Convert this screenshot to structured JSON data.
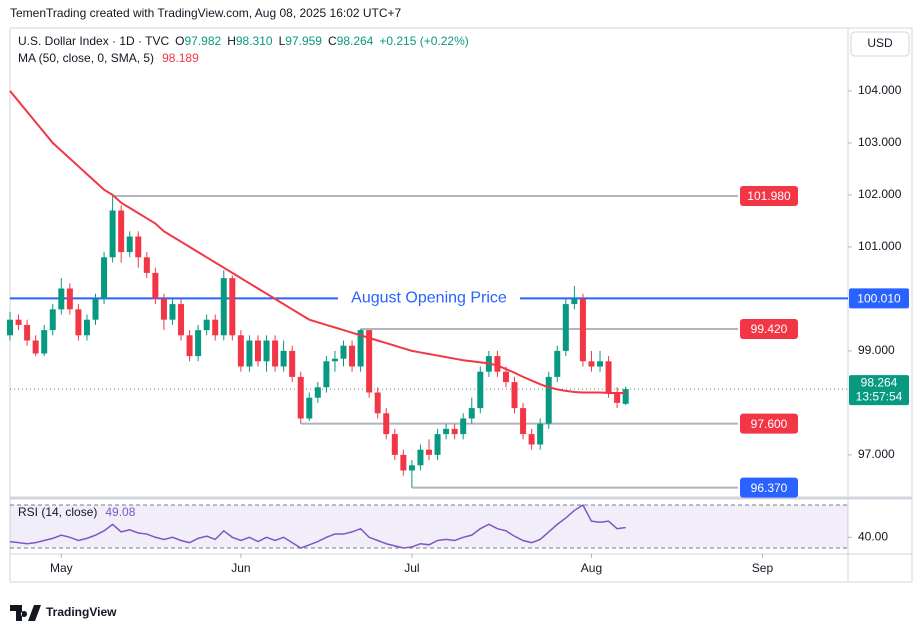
{
  "header": "TemenTrading created with TradingView.com, Aug 08, 2025 16:02 UTC+7",
  "brand": "TradingView",
  "currency": "USD",
  "chart_data": [
    {
      "type": "candlestick",
      "legend": {
        "symbol": "U.S. Dollar Index · 1D · TVC",
        "fields": [
          {
            "key": "O",
            "value": "97.982"
          },
          {
            "key": "H",
            "value": "98.310"
          },
          {
            "key": "L",
            "value": "97.959"
          },
          {
            "key": "C",
            "value": "98.264"
          }
        ],
        "change": "+0.215 (+0.22%)"
      },
      "x": [
        0,
        1,
        2,
        3,
        4,
        5,
        6,
        7,
        8,
        9,
        10,
        11,
        12,
        13,
        14,
        15,
        16,
        17,
        18,
        19,
        20,
        21,
        22,
        23,
        24,
        25,
        26,
        27,
        28,
        29,
        30,
        31,
        32,
        33,
        34,
        35,
        36,
        37,
        38,
        39,
        40,
        41,
        42,
        43,
        44,
        45,
        46,
        47,
        48,
        49,
        50,
        51,
        52,
        53,
        54,
        55,
        56,
        57,
        58,
        59,
        60,
        61,
        62,
        63,
        64,
        65,
        66,
        67,
        68,
        69,
        70,
        71,
        72
      ],
      "open": [
        99.3,
        99.6,
        99.5,
        99.2,
        98.95,
        99.4,
        99.8,
        100.2,
        99.8,
        99.3,
        99.6,
        100.0,
        100.8,
        101.7,
        100.9,
        101.2,
        100.8,
        100.5,
        100.0,
        99.6,
        99.9,
        99.3,
        98.9,
        99.4,
        99.6,
        99.3,
        100.4,
        99.3,
        98.7,
        99.2,
        98.8,
        99.2,
        98.7,
        99.0,
        98.5,
        97.7,
        98.1,
        98.3,
        98.8,
        98.85,
        99.1,
        98.7,
        99.4,
        98.2,
        97.8,
        97.4,
        97.0,
        96.7,
        96.8,
        97.1,
        97.0,
        97.4,
        97.5,
        97.4,
        97.7,
        97.9,
        98.6,
        98.9,
        98.6,
        98.4,
        97.9,
        97.4,
        97.2,
        97.6,
        98.5,
        99.0,
        99.9,
        100.0,
        98.8,
        98.7,
        98.8,
        98.2,
        97.982
      ],
      "high": [
        99.75,
        99.7,
        99.6,
        99.3,
        99.5,
        99.9,
        100.4,
        100.3,
        99.9,
        99.7,
        100.1,
        100.9,
        101.98,
        101.8,
        101.3,
        101.3,
        100.9,
        100.6,
        100.1,
        100.0,
        100.0,
        99.4,
        99.5,
        99.7,
        99.7,
        100.55,
        100.45,
        99.4,
        99.3,
        99.3,
        99.3,
        99.3,
        99.2,
        99.1,
        98.6,
        98.2,
        98.4,
        98.9,
        99.0,
        99.2,
        99.2,
        99.42,
        99.4,
        98.3,
        97.9,
        97.5,
        97.1,
        96.9,
        97.2,
        97.3,
        97.5,
        97.6,
        97.6,
        97.8,
        98.1,
        98.7,
        99.0,
        99.0,
        98.7,
        98.5,
        98.0,
        97.5,
        97.7,
        98.6,
        99.1,
        100.0,
        100.25,
        100.1,
        99.0,
        99.0,
        98.9,
        98.3,
        98.31
      ],
      "low": [
        99.2,
        99.4,
        99.1,
        98.9,
        98.9,
        99.3,
        99.7,
        99.7,
        99.2,
        99.2,
        99.5,
        99.9,
        100.7,
        100.7,
        100.8,
        100.6,
        100.4,
        99.9,
        99.4,
        99.5,
        99.2,
        98.8,
        98.8,
        99.3,
        99.2,
        99.2,
        99.2,
        98.6,
        98.6,
        98.7,
        98.6,
        98.6,
        98.6,
        98.4,
        97.6,
        97.65,
        98.0,
        98.2,
        98.6,
        98.7,
        98.6,
        98.6,
        98.1,
        97.7,
        97.3,
        96.9,
        96.6,
        96.37,
        96.7,
        96.9,
        96.9,
        97.3,
        97.3,
        97.3,
        97.6,
        97.8,
        98.5,
        98.5,
        98.3,
        97.8,
        97.3,
        97.1,
        97.1,
        97.5,
        98.4,
        98.9,
        99.8,
        98.7,
        98.6,
        98.6,
        98.1,
        97.9,
        97.959
      ],
      "close": [
        99.6,
        99.5,
        99.2,
        98.95,
        99.4,
        99.8,
        100.2,
        99.8,
        99.3,
        99.6,
        100.0,
        100.8,
        101.7,
        100.9,
        101.2,
        100.8,
        100.5,
        100.0,
        99.6,
        99.9,
        99.3,
        98.9,
        99.4,
        99.6,
        99.3,
        100.4,
        99.3,
        98.7,
        99.2,
        98.8,
        99.2,
        98.7,
        99.0,
        98.5,
        97.7,
        98.1,
        98.3,
        98.8,
        98.85,
        99.1,
        98.7,
        99.4,
        98.2,
        97.8,
        97.4,
        97.0,
        96.7,
        96.8,
        97.1,
        97.0,
        97.4,
        97.5,
        97.4,
        97.7,
        97.9,
        98.6,
        98.9,
        98.6,
        98.4,
        97.9,
        97.4,
        97.2,
        97.6,
        98.5,
        99.0,
        99.9,
        100.0,
        98.8,
        98.7,
        98.8,
        98.2,
        98.0,
        98.264
      ],
      "up_color": "#089981",
      "down_color": "#f23645",
      "ma": {
        "name": "MA (50, close, 0, SMA, 5)",
        "color": "#f23645",
        "values": [
          104.0,
          103.8,
          103.6,
          103.4,
          103.2,
          103.0,
          102.85,
          102.7,
          102.55,
          102.4,
          102.25,
          102.1,
          102.0,
          101.85,
          101.75,
          101.65,
          101.55,
          101.45,
          101.3,
          101.2,
          101.1,
          101.0,
          100.9,
          100.8,
          100.7,
          100.6,
          100.5,
          100.4,
          100.3,
          100.2,
          100.1,
          100.0,
          99.9,
          99.8,
          99.7,
          99.6,
          99.55,
          99.5,
          99.45,
          99.4,
          99.35,
          99.3,
          99.25,
          99.2,
          99.15,
          99.1,
          99.05,
          99.0,
          98.97,
          98.94,
          98.91,
          98.88,
          98.85,
          98.82,
          98.8,
          98.78,
          98.76,
          98.72,
          98.65,
          98.58,
          98.5,
          98.43,
          98.36,
          98.3,
          98.26,
          98.23,
          98.21,
          98.2,
          98.2,
          98.2,
          98.19,
          98.19,
          98.189
        ]
      },
      "levels": [
        {
          "value": 101.98,
          "label": "101.980",
          "color": "#f23645"
        },
        {
          "value": 99.42,
          "label": "99.420",
          "color": "#f23645"
        },
        {
          "value": 97.6,
          "label": "97.600",
          "color": "#f23645"
        },
        {
          "value": 96.37,
          "label": "96.370",
          "color": "#2962ff"
        }
      ],
      "opening_line": {
        "value": 100.01,
        "label": "100.010",
        "text": "August Opening Price",
        "color": "#2962ff"
      },
      "current_price": {
        "value": 98.264,
        "countdown": "13:57:54",
        "color": "#089981"
      },
      "xlim": [
        0,
        98
      ],
      "xticks": [
        {
          "value": 6,
          "label": "May"
        },
        {
          "value": 27,
          "label": "Jun"
        },
        {
          "value": 47,
          "label": "Jul"
        },
        {
          "value": 68,
          "label": "Aug"
        },
        {
          "value": 88,
          "label": "Sep"
        }
      ],
      "ylim": [
        96.19,
        105.21
      ],
      "yticks": [
        {
          "value": 97,
          "label": "97.000"
        },
        {
          "value": 99,
          "label": "99.000"
        },
        {
          "value": 101,
          "label": "101.000"
        },
        {
          "value": 102,
          "label": "102.000"
        },
        {
          "value": 103,
          "label": "103.000"
        },
        {
          "value": 104,
          "label": "104.000"
        }
      ],
      "grid": false
    },
    {
      "type": "line",
      "title": "RSI (14, close)",
      "color": "#7e57c2",
      "values": [
        36,
        35,
        34,
        35,
        37,
        39,
        42,
        40,
        37,
        39,
        42,
        46,
        52,
        45,
        47,
        44,
        43,
        40,
        38,
        40,
        37,
        35,
        39,
        41,
        38,
        46,
        40,
        37,
        40,
        36,
        40,
        37,
        40,
        35,
        30,
        33,
        36,
        40,
        43,
        43,
        45,
        48,
        40,
        37,
        34,
        32,
        30,
        31,
        34,
        33,
        37,
        38,
        37,
        40,
        42,
        48,
        52,
        48,
        46,
        41,
        37,
        35,
        38,
        45,
        52,
        58,
        65,
        70,
        55,
        54,
        55,
        48,
        49.08
      ],
      "band": [
        30,
        70
      ],
      "ylim": [
        26.3,
        74.7
      ],
      "yticks": [
        {
          "value": 40,
          "label": "40.00"
        }
      ]
    }
  ]
}
